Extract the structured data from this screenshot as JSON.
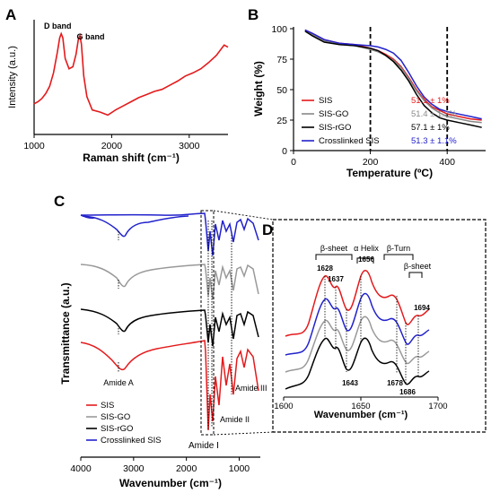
{
  "chart_data": [
    {
      "panel": "A",
      "type": "line",
      "xlabel": "Raman shift (cm⁻¹)",
      "ylabel": "Intensity (a.u.)",
      "xlim": [
        1000,
        3500
      ],
      "xticks": [
        "1000",
        "2000",
        "3000"
      ],
      "annotations": [
        {
          "text": "D band",
          "x": 1350
        },
        {
          "text": "G band",
          "x": 1590
        }
      ],
      "series": [
        {
          "color": "#e41a1c",
          "x": [
            1000,
            1050,
            1100,
            1150,
            1200,
            1250,
            1300,
            1330,
            1350,
            1370,
            1400,
            1450,
            1500,
            1540,
            1570,
            1590,
            1610,
            1640,
            1680,
            1750,
            1850,
            1950,
            2050,
            2150,
            2250,
            2350,
            2450,
            2550,
            2650,
            2750,
            2850,
            2950,
            3050,
            3150,
            3250,
            3350,
            3450,
            3500
          ],
          "y": [
            0.28,
            0.3,
            0.33,
            0.38,
            0.45,
            0.58,
            0.78,
            0.92,
            0.96,
            0.92,
            0.72,
            0.62,
            0.64,
            0.76,
            0.9,
            0.94,
            0.86,
            0.55,
            0.35,
            0.22,
            0.2,
            0.17,
            0.22,
            0.26,
            0.3,
            0.34,
            0.37,
            0.4,
            0.42,
            0.46,
            0.5,
            0.55,
            0.58,
            0.62,
            0.68,
            0.75,
            0.85,
            0.83
          ]
        }
      ]
    },
    {
      "panel": "B",
      "type": "line",
      "xlabel": "Temperature (ºC)",
      "ylabel": "Weight (%)",
      "xlim": [
        0,
        500
      ],
      "ylim": [
        0,
        100
      ],
      "xticks": [
        "0",
        "200",
        "400"
      ],
      "yticks": [
        "0",
        "25",
        "50",
        "75",
        "100"
      ],
      "vlines": [
        200,
        400
      ],
      "series": [
        {
          "name": "SIS",
          "value_label": "51.1 ± 1%",
          "color": "#e41a1c",
          "x": [
            30,
            50,
            80,
            120,
            160,
            200,
            220,
            240,
            260,
            280,
            300,
            320,
            340,
            360,
            380,
            400,
            430,
            460,
            490
          ],
          "y": [
            99,
            96,
            91,
            88,
            87,
            84,
            82,
            79,
            75,
            69,
            60,
            50,
            42,
            36,
            33,
            30,
            28,
            26,
            25
          ]
        },
        {
          "name": "SIS-GO",
          "value_label": "51.4 ± 1.2%",
          "color": "#888888",
          "x": [
            30,
            50,
            80,
            120,
            160,
            200,
            220,
            240,
            260,
            280,
            300,
            320,
            340,
            360,
            380,
            400,
            430,
            460,
            490
          ],
          "y": [
            99,
            95,
            90,
            87,
            86,
            83,
            81,
            78,
            74,
            68,
            59,
            49,
            41,
            35,
            31,
            28,
            26,
            24,
            23
          ]
        },
        {
          "name": "SIS-rGO",
          "value_label": "57.1 ± 1%",
          "color": "#000000",
          "x": [
            30,
            50,
            80,
            120,
            160,
            200,
            220,
            240,
            260,
            280,
            300,
            320,
            340,
            360,
            380,
            400,
            430,
            460,
            490
          ],
          "y": [
            98,
            94,
            89,
            87,
            86,
            84,
            82,
            78,
            73,
            66,
            57,
            46,
            37,
            31,
            27,
            25,
            23,
            21,
            19
          ]
        },
        {
          "name": "Crosslinked SIS",
          "value_label": "51.3 ± 1.1%",
          "color": "#2222cc",
          "x": [
            30,
            50,
            80,
            120,
            160,
            200,
            220,
            240,
            260,
            280,
            300,
            320,
            340,
            360,
            380,
            400,
            430,
            460,
            490
          ],
          "y": [
            99,
            96,
            91,
            88,
            87,
            86,
            85,
            83,
            80,
            74,
            64,
            53,
            44,
            38,
            34,
            32,
            30,
            28,
            26
          ]
        }
      ]
    },
    {
      "panel": "C",
      "type": "line",
      "xlabel": "Wavenumber (cm⁻¹)",
      "ylabel": "Transmittance (a.u.)",
      "xlim": [
        4000,
        600
      ],
      "xticks": [
        "4000",
        "3000",
        "2000",
        "1000"
      ],
      "annotations": [
        "Amide A",
        "Amide III",
        "Amide II",
        "Amide I"
      ],
      "series": [
        {
          "name": "SIS",
          "color": "#e41a1c"
        },
        {
          "name": "SIS-GO",
          "color": "#999999"
        },
        {
          "name": "SIS-rGO",
          "color": "#000000"
        },
        {
          "name": "Crosslinked SIS",
          "color": "#2222cc"
        }
      ]
    },
    {
      "panel": "D",
      "type": "line",
      "xlabel": "Wavenumber (cm⁻¹)",
      "xlim": [
        1600,
        1700
      ],
      "xticks": [
        "1600",
        "1650",
        "1700"
      ],
      "region_labels": [
        "β-sheet",
        "α Helix",
        "β-Turn",
        "β-sheet"
      ],
      "peak_labels": [
        {
          "text": "1628",
          "x": 1628
        },
        {
          "text": "1637",
          "x": 1637
        },
        {
          "text": "1656",
          "x": 1656
        },
        {
          "text": "1694",
          "x": 1694
        },
        {
          "text": "1643",
          "x": 1643
        },
        {
          "text": "1678",
          "x": 1678
        },
        {
          "text": "1686",
          "x": 1686
        }
      ]
    }
  ]
}
